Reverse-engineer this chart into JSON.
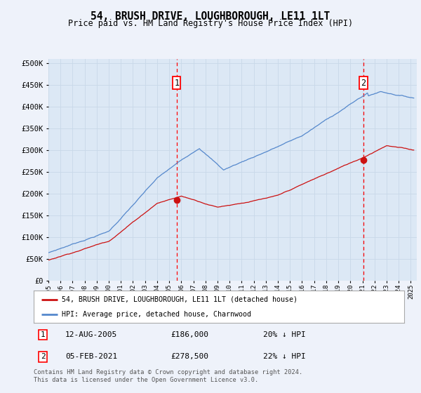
{
  "title": "54, BRUSH DRIVE, LOUGHBOROUGH, LE11 1LT",
  "subtitle": "Price paid vs. HM Land Registry's House Price Index (HPI)",
  "background_color": "#eef2fa",
  "plot_bg_color": "#dce8f5",
  "grid_color": "#c8d8e8",
  "yticks": [
    0,
    50000,
    100000,
    150000,
    200000,
    250000,
    300000,
    350000,
    400000,
    450000,
    500000
  ],
  "ylim": [
    0,
    510000
  ],
  "xlim_start": 1995.0,
  "xlim_end": 2025.5,
  "hpi_color": "#5588cc",
  "price_color": "#cc1111",
  "marker1_x": 2005.617,
  "marker1_y": 186000,
  "marker2_x": 2021.09,
  "marker2_y": 278500,
  "legend_label1": "54, BRUSH DRIVE, LOUGHBOROUGH, LE11 1LT (detached house)",
  "legend_label2": "HPI: Average price, detached house, Charnwood",
  "annot1_date": "12-AUG-2005",
  "annot1_price": "£186,000",
  "annot1_hpi": "20% ↓ HPI",
  "annot2_date": "05-FEB-2021",
  "annot2_price": "£278,500",
  "annot2_hpi": "22% ↓ HPI",
  "footer": "Contains HM Land Registry data © Crown copyright and database right 2024.\nThis data is licensed under the Open Government Licence v3.0."
}
